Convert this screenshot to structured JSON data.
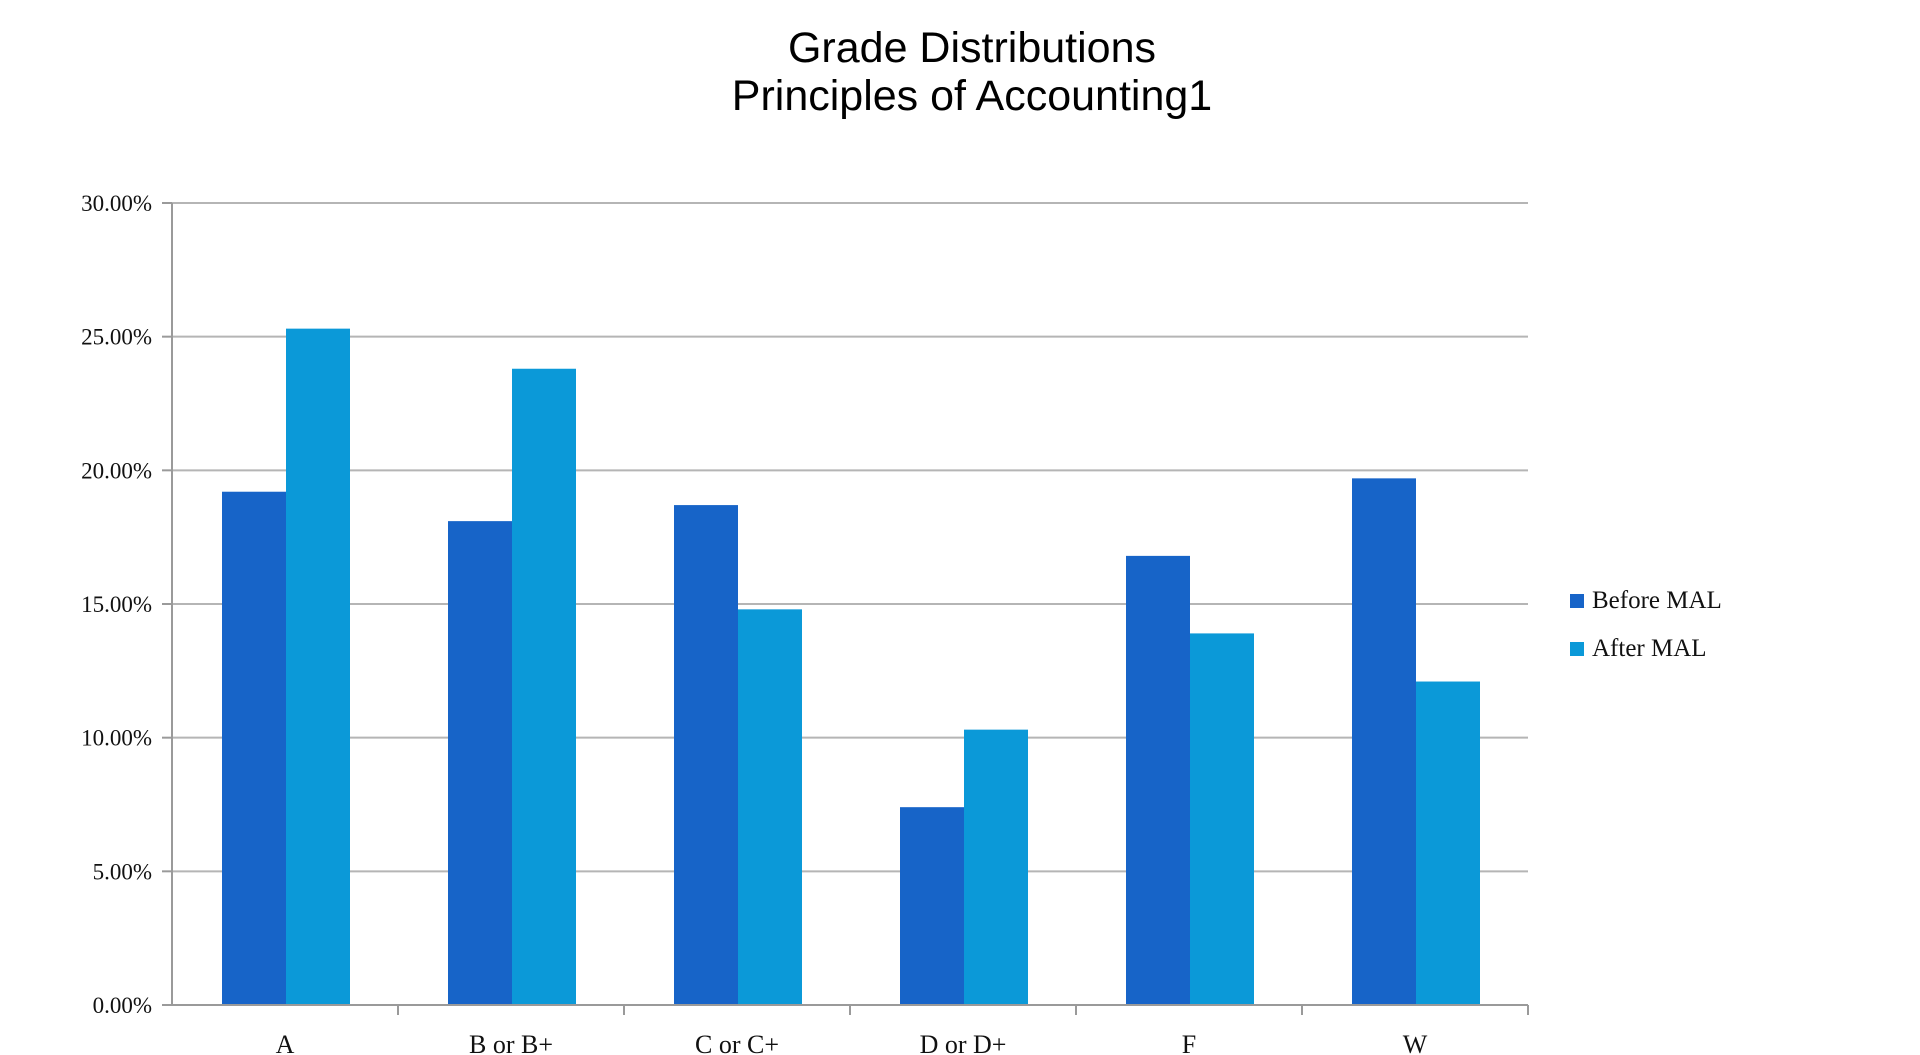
{
  "chart_data": {
    "type": "bar",
    "title": "Grade Distributions",
    "subtitle": "Principles of Accounting1",
    "categories": [
      "A",
      "B or B+",
      "C or C+",
      "D or D+",
      "F",
      "W"
    ],
    "series": [
      {
        "name": "Before MAL",
        "color": "#1764C8",
        "values": [
          19.2,
          18.1,
          18.7,
          7.4,
          16.8,
          19.7
        ]
      },
      {
        "name": "After MAL",
        "color": "#0B99D8",
        "values": [
          25.3,
          23.8,
          14.8,
          10.3,
          13.9,
          12.1
        ]
      }
    ],
    "ylim": [
      0,
      30
    ],
    "yticks": [
      0,
      5,
      10,
      15,
      20,
      25,
      30
    ],
    "ytick_labels": [
      "0.00%",
      "5.00%",
      "10.00%",
      "15.00%",
      "20.00%",
      "25.00%",
      "30.00%"
    ],
    "grid": true,
    "legend_position": "right"
  }
}
